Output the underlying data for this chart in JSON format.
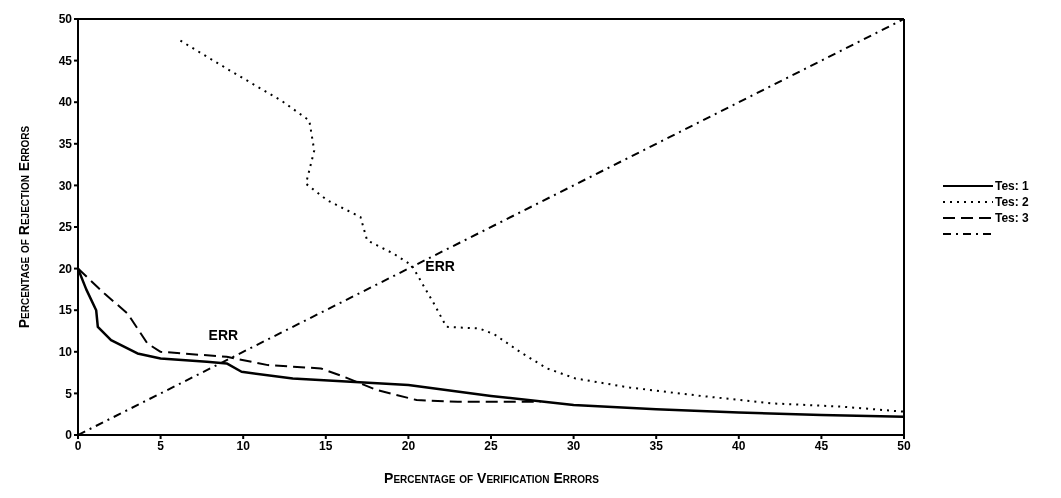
{
  "chart_data": {
    "type": "line",
    "xlabel": "Percentage of Verification Errors",
    "ylabel": "Percentage of Rejection Errors",
    "xlim": [
      0,
      50
    ],
    "ylim": [
      0,
      50
    ],
    "xticks": [
      0,
      5,
      10,
      15,
      20,
      25,
      30,
      35,
      40,
      45,
      50
    ],
    "yticks": [
      0,
      5,
      10,
      15,
      20,
      25,
      30,
      35,
      40,
      45,
      50
    ],
    "legend": "right",
    "marker": "none",
    "series": [
      {
        "name": "Tes: 1",
        "color": "#000000",
        "line_style": "solid",
        "x": [
          0,
          0.5,
          1.1,
          1.2,
          2,
          3.6,
          5,
          7.8,
          9,
          9.9,
          13,
          16.5,
          20,
          25,
          30,
          35,
          40,
          45,
          50
        ],
        "values": [
          20,
          17.5,
          15,
          13,
          11.4,
          9.8,
          9.2,
          8.8,
          8.6,
          7.6,
          6.8,
          6.4,
          6,
          4.7,
          3.6,
          3.1,
          2.7,
          2.4,
          2.2
        ]
      },
      {
        "name": "Tes: 2",
        "color": "#000000",
        "line_style": "dotted",
        "x": [
          6.2,
          9.2,
          12.3,
          14,
          14.3,
          13.8,
          15.1,
          17.1,
          17.5,
          19.1,
          20.2,
          21.6,
          22.3,
          24.3,
          25.2,
          26.9,
          28.4,
          30.1,
          33.4,
          37.7,
          42,
          46.3,
          50
        ],
        "values": [
          47.4,
          43.8,
          40.2,
          37.8,
          34.2,
          30.2,
          28.2,
          26.2,
          23.4,
          21.8,
          20.4,
          15.6,
          13,
          12.8,
          12.1,
          9.8,
          8,
          6.8,
          5.7,
          4.7,
          3.8,
          3.4,
          2.8
        ]
      },
      {
        "name": "Tes: 3",
        "color": "#000000",
        "line_style": "dashed",
        "x": [
          0,
          1.6,
          3,
          4.2,
          5,
          9,
          11.5,
          14.7,
          16.1,
          18.1,
          20.5,
          23,
          28
        ],
        "values": [
          20,
          17,
          14.6,
          11,
          10,
          9.4,
          8.4,
          8,
          7,
          5.4,
          4.2,
          4,
          4
        ]
      },
      {
        "color": "#000000",
        "line_style": "dashdot",
        "x": [
          0,
          50
        ],
        "values": [
          0,
          50
        ]
      }
    ],
    "annotations": [
      {
        "text": "ERR",
        "x": 8.8,
        "y": 8.8
      },
      {
        "text": "ERR",
        "x": 20.3,
        "y": 20.3
      }
    ]
  }
}
